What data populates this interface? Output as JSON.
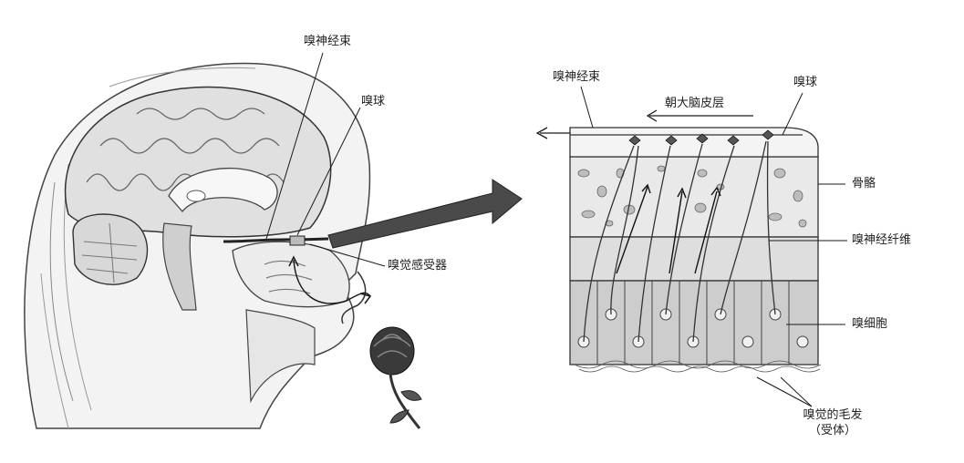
{
  "labels": {
    "left_nerve_bundle": "嗅神经束",
    "left_bulb": "嗅球",
    "left_receptor": "嗅觉感受器",
    "right_nerve_bundle": "嗅神经束",
    "cortex_direction": "朝大脑皮层",
    "right_bulb": "嗅球",
    "bone": "骨骼",
    "nerve_fiber": "嗅神经纤维",
    "olfactory_cell": "嗅细胞",
    "hairs_line1": "嗅觉的毛发",
    "hairs_line2": "（受体）"
  },
  "colors": {
    "line": "#1a1a1a",
    "sketch": "#555555",
    "head_fill": "#f2f2f2",
    "brain_fill": "#e2e2e2",
    "arrow_fill": "#4a4a4a",
    "bone_fill": "#e9e9e9",
    "fiber_fill": "#dcdcdc",
    "cell_fill": "#cfcfcf"
  }
}
